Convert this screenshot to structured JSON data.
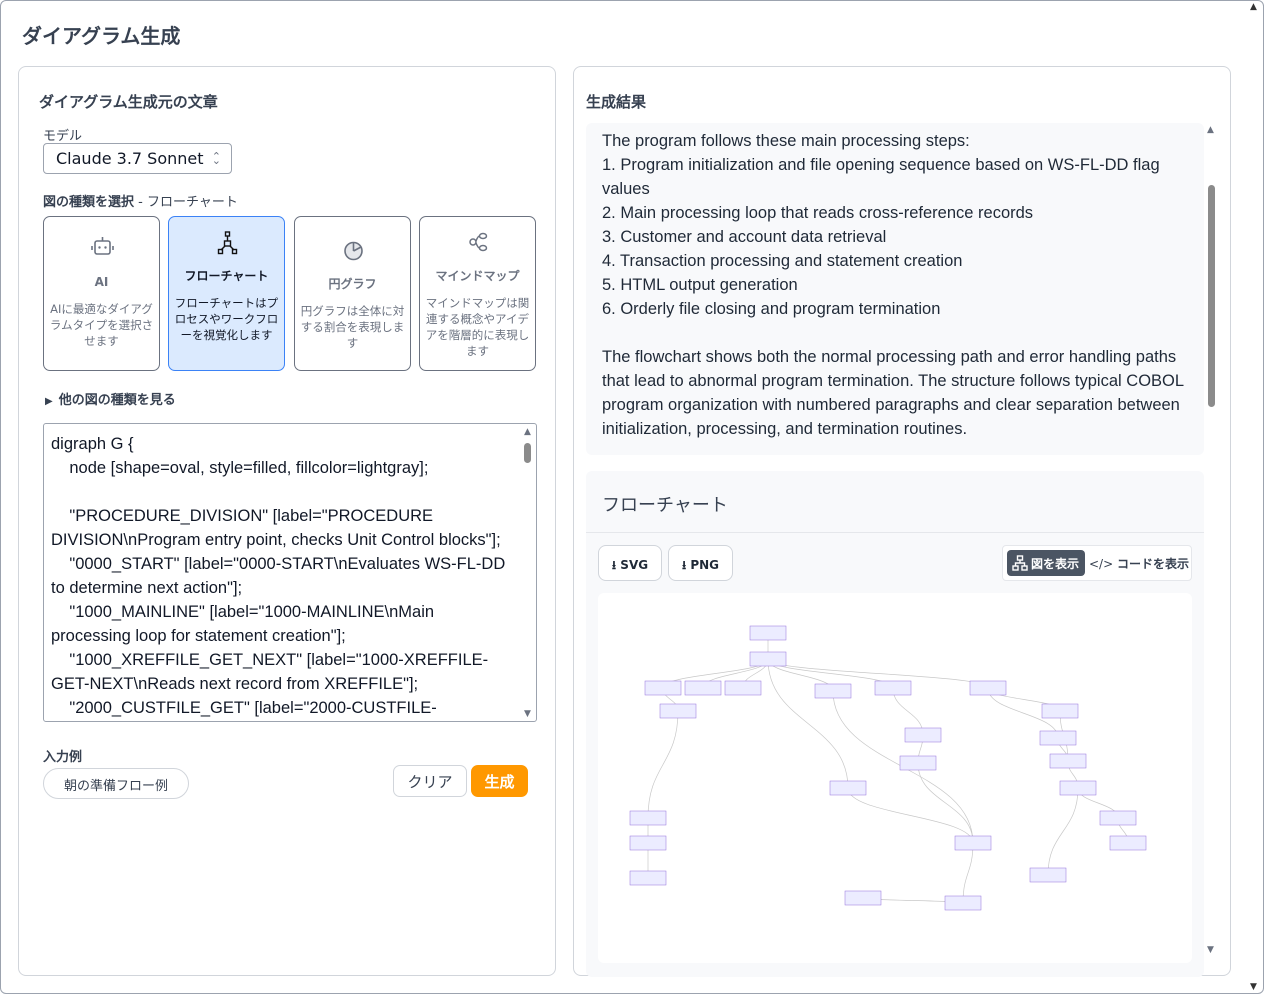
{
  "page_title": "ダイアグラム生成",
  "left": {
    "title": "ダイアグラム生成元の文章",
    "model_label": "モデル",
    "model_value": "Claude 3.7 Sonnet",
    "type_label": "図の種類を選択",
    "type_selected": " - フローチャート",
    "cards": [
      {
        "name": "AI",
        "desc": "AIに最適なダイアグラムタイプを選択させます",
        "icon": "robot-icon"
      },
      {
        "name": "フローチャート",
        "desc": "フローチャートはプロセスやワークフローを視覚化します",
        "icon": "flowchart-icon",
        "selected": true
      },
      {
        "name": "円グラフ",
        "desc": "円グラフは全体に対する割合を表現します",
        "icon": "pie-chart-icon"
      },
      {
        "name": "マインドマップ",
        "desc": "マインドマップは関連する概念やアイデアを階層的に表現します",
        "icon": "mindmap-icon"
      }
    ],
    "more_types": "他の図の種類を見る",
    "code": "digraph G {\n    node [shape=oval, style=filled, fillcolor=lightgray];\n\n    \"PROCEDURE_DIVISION\" [label=\"PROCEDURE DIVISION\\nProgram entry point, checks Unit Control blocks\"];\n    \"0000_START\" [label=\"0000-START\\nEvaluates WS-FL-DD to determine next action\"];\n    \"1000_MAINLINE\" [label=\"1000-MAINLINE\\nMain processing loop for statement creation\"];\n    \"1000_XREFFILE_GET_NEXT\" [label=\"1000-XREFFILE-GET-NEXT\\nReads next record from XREFFILE\"];\n    \"2000_CUSTFILE_GET\" [label=\"2000-CUSTFILE-",
    "examples_label": "入力例",
    "example_button": "朝の準備フロー例",
    "clear_button": "クリア",
    "generate_button": "生成",
    "accent": "#ff9800"
  },
  "right": {
    "title": "生成結果",
    "result_lines": [
      "The program follows these main processing steps:",
      "1. Program initialization and file opening sequence based on WS-FL-DD flag values",
      "2. Main processing loop that reads cross-reference records",
      "3. Customer and account data retrieval",
      "4. Transaction processing and statement creation",
      "5. HTML output generation",
      "6. Orderly file closing and program termination",
      "",
      "The flowchart shows both the normal processing path and error handling paths that lead to abnormal program termination. The structure follows typical COBOL program organization with numbered paragraphs and clear separation between initialization, processing, and termination routines."
    ],
    "flowchart_title": "フローチャート",
    "svg_button": "SVG",
    "png_button": "PNG",
    "show_diagram": "図を表示",
    "show_code": "コードを表示"
  }
}
